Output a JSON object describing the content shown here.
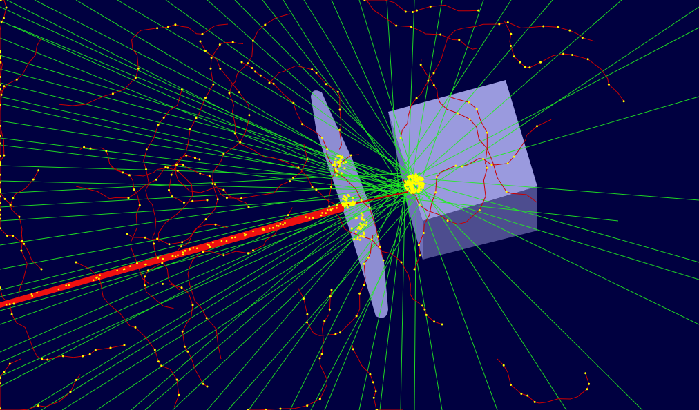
{
  "scene": {
    "background_color": "#000040",
    "colors": {
      "gamma_track": "#22ee22",
      "charged_track": "#cc0000",
      "primary_beam": "#ee1010",
      "hit_point": "#ffff00",
      "detector_face": "#9999dd",
      "detector_side": "#4a4a8a",
      "plate": "#a0a0e6"
    },
    "components": [
      "plate-detector",
      "cube-detector",
      "primary-beam",
      "gamma-tracks",
      "charged-tracks",
      "hit-points"
    ]
  }
}
